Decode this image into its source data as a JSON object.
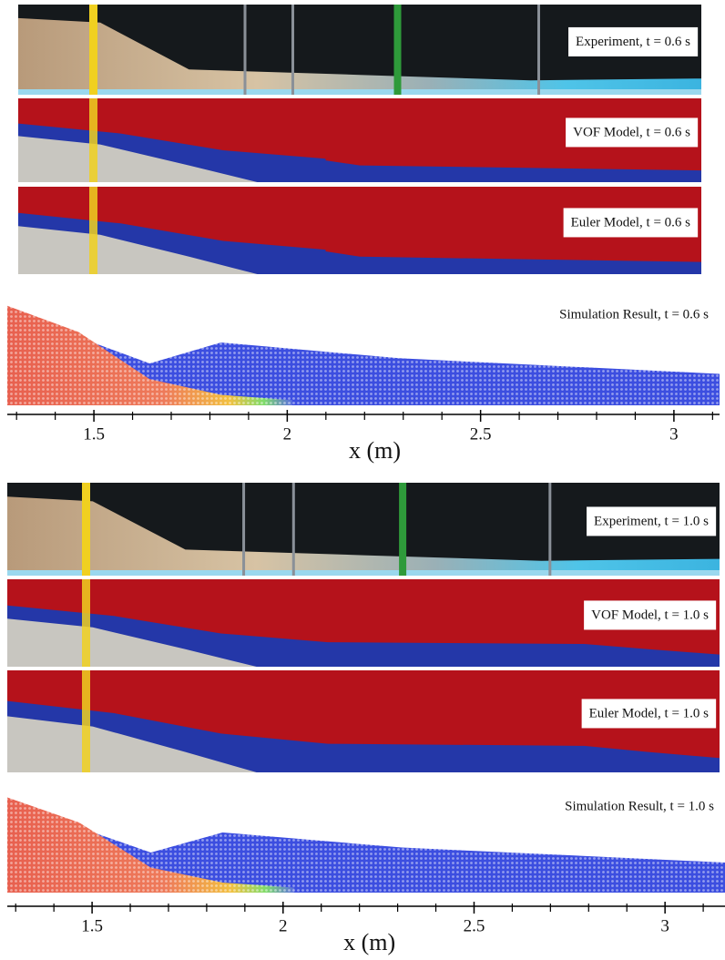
{
  "figure": {
    "groups": [
      {
        "panels": [
          {
            "kind": "experiment",
            "label": "Experiment, t = 0.6 s"
          },
          {
            "kind": "vof",
            "label": "VOF Model, t = 0.6 s"
          },
          {
            "kind": "euler",
            "label": "Euler Model, t = 0.6 s"
          },
          {
            "kind": "simulation",
            "label": "Simulation Result, t = 0.6 s"
          }
        ],
        "axis": {
          "label": "x (m)",
          "xlim": [
            1.276,
            3.118
          ],
          "xticks": [
            1.5,
            2,
            2.5,
            3
          ],
          "minor_xticks": [
            1.3,
            1.4,
            1.6,
            1.7,
            1.8,
            1.9,
            2.1,
            2.2,
            2.3,
            2.4,
            2.6,
            2.7,
            2.8,
            2.9,
            3.1
          ]
        }
      },
      {
        "panels": [
          {
            "kind": "experiment",
            "label": "Experiment, t = 1.0 s"
          },
          {
            "kind": "vof",
            "label": "VOF Model, t = 1.0 s"
          },
          {
            "kind": "euler",
            "label": "Euler Model, t = 1.0 s"
          },
          {
            "kind": "simulation",
            "label": "Simulation Result, t = 1.0 s"
          }
        ],
        "axis": {
          "label": "x (m)",
          "xlim": [
            1.278,
            3.157
          ],
          "xticks": [
            1.5,
            2,
            2.5,
            3
          ],
          "minor_xticks": [
            1.3,
            1.4,
            1.6,
            1.7,
            1.8,
            1.9,
            2.1,
            2.2,
            2.3,
            2.4,
            2.6,
            2.7,
            2.8,
            2.9,
            3.1
          ]
        }
      }
    ]
  }
}
